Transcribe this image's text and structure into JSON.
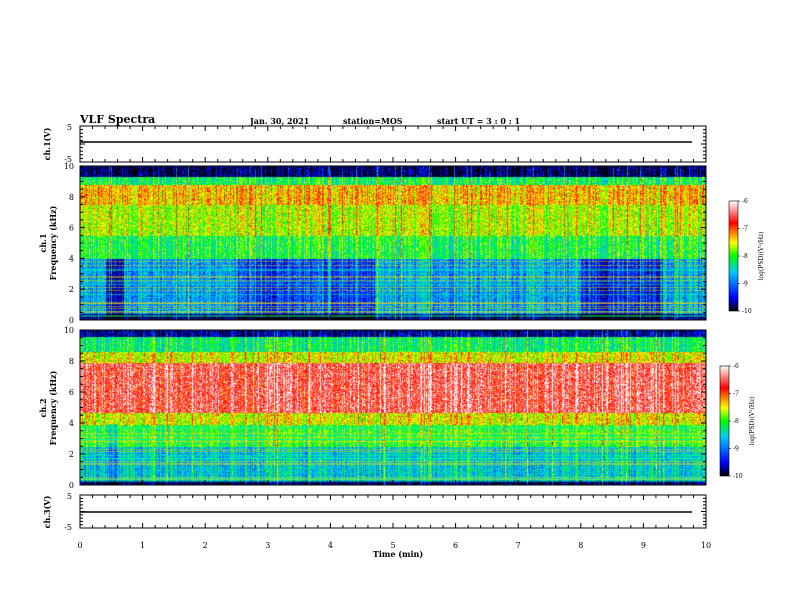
{
  "header": {
    "title": "VLF Spectra",
    "date": "Jan. 30, 2021",
    "station": "station=MOS",
    "start": "start UT =  3 : 0 : 1"
  },
  "chart_data": {
    "type": "heatmap",
    "x": {
      "label": "Time (min)",
      "range": [
        0,
        10
      ],
      "ticks": [
        0,
        1,
        2,
        3,
        4,
        5,
        6,
        7,
        8,
        9,
        10
      ]
    },
    "panels": [
      {
        "id": "ch1-voltage",
        "ylabel": "ch.1(V)",
        "yrange": [
          -5,
          5
        ],
        "yticks": [
          "5",
          "-5"
        ],
        "line_level": 0
      },
      {
        "id": "ch1-spectrogram",
        "ylabel_channel": "ch.1",
        "ylabel": "Frequency (kHz)",
        "yrange": [
          0,
          10
        ],
        "yticks": [
          0,
          2,
          4,
          6,
          8,
          10
        ],
        "colorbar": {
          "label": "log(PSD)(V²/Hz)",
          "range": [
            -10,
            -6
          ],
          "ticks": [
            "-6",
            "-7",
            "-8",
            "-9",
            "-10"
          ]
        }
      },
      {
        "id": "ch2-spectrogram",
        "ylabel_channel": "ch.2",
        "ylabel": "Frequency (kHz)",
        "yrange": [
          0,
          10
        ],
        "yticks": [
          0,
          2,
          4,
          6,
          8,
          10
        ],
        "colorbar": {
          "label": "log(PSD)(V²/Hz)",
          "range": [
            -10,
            -6
          ],
          "ticks": [
            "-6",
            "-7",
            "-8",
            "-9",
            "-10"
          ]
        }
      },
      {
        "id": "ch3-voltage",
        "ylabel": "ch.3(V)",
        "yrange": [
          -5,
          5
        ],
        "yticks": [
          "5",
          "-5"
        ],
        "line_level": 0
      }
    ]
  },
  "colors": {
    "frame": "#000000",
    "colormap": [
      "#000000",
      "#0000ff",
      "#00c8ff",
      "#00ff00",
      "#ffff00",
      "#ff0000",
      "#ffffff"
    ]
  }
}
